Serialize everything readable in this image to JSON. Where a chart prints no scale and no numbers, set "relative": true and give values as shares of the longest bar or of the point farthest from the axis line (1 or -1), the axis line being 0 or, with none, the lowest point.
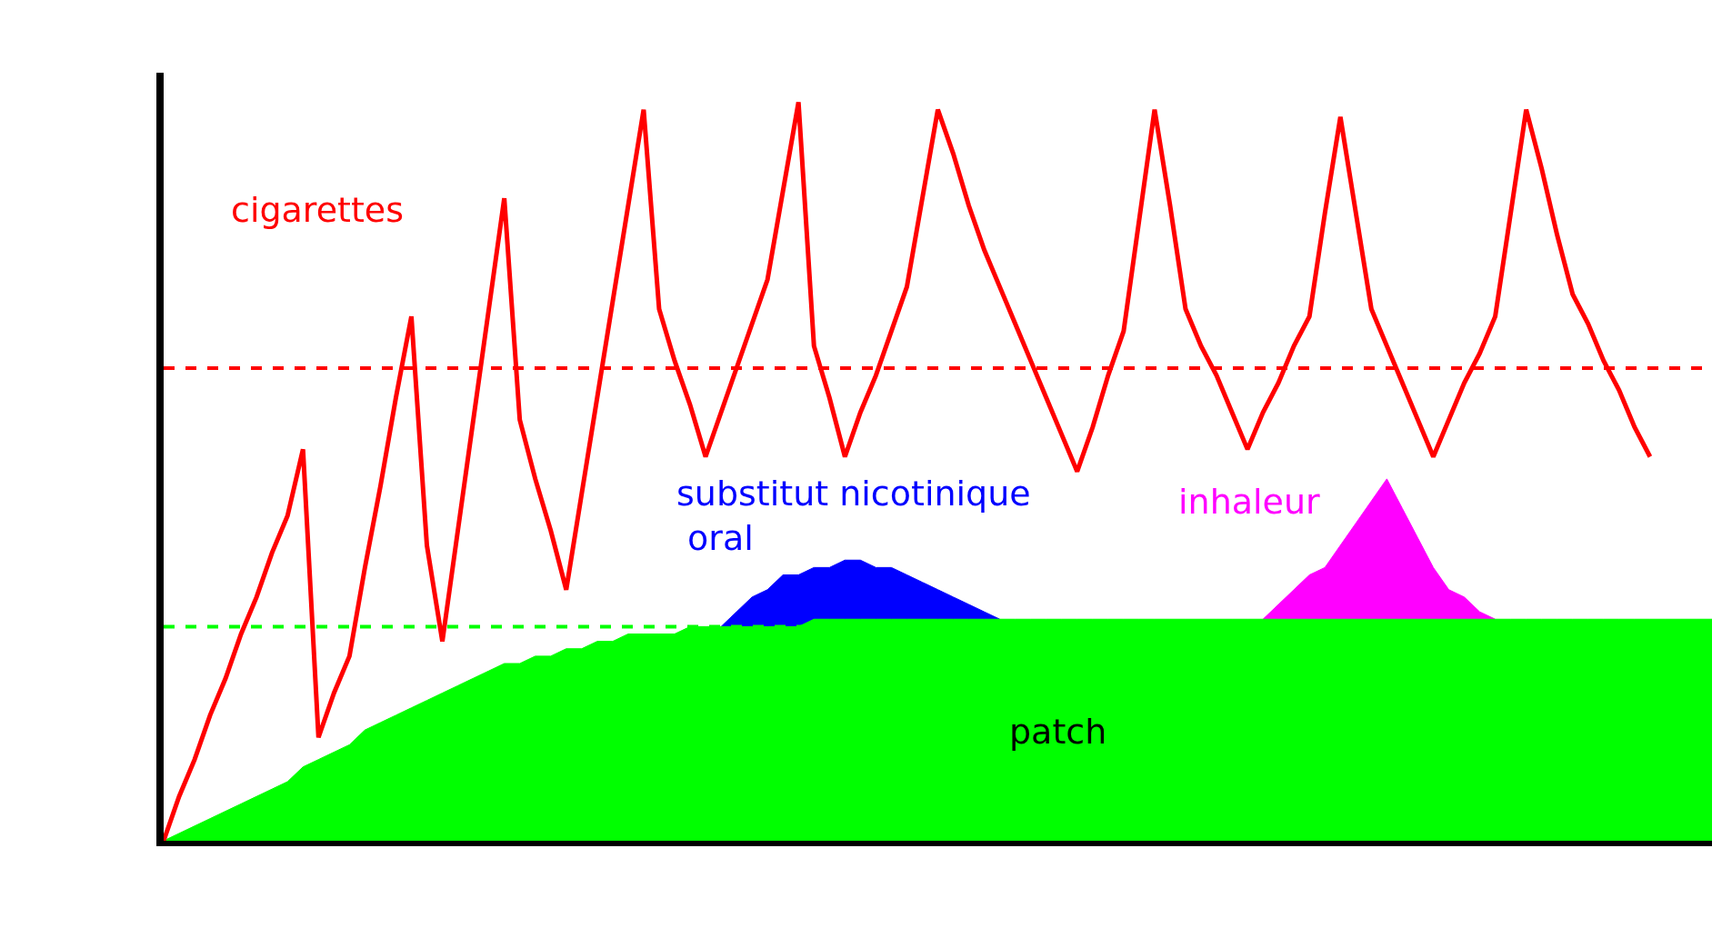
{
  "chart_data": {
    "type": "line",
    "relative": true,
    "tick_labels": false,
    "grid": false,
    "legend": false,
    "marker": "none",
    "categories": [
      null,
      null,
      null,
      null,
      null,
      null,
      null,
      null,
      null,
      null,
      null,
      null,
      null,
      null,
      null,
      null,
      null,
      null,
      null,
      null,
      null,
      null,
      null,
      null,
      null,
      null,
      null,
      null,
      null,
      null,
      null,
      null,
      null,
      null,
      null,
      null,
      null,
      null,
      null,
      null,
      null,
      null,
      null,
      null,
      null,
      null,
      null,
      null,
      null,
      null,
      null,
      null,
      null,
      null,
      null,
      null,
      null,
      null,
      null,
      null,
      null,
      null,
      null,
      null,
      null,
      null,
      null,
      null,
      null,
      null,
      null,
      null,
      null,
      null,
      null,
      null,
      null,
      null,
      null,
      null,
      null,
      null,
      null,
      null,
      null,
      null,
      null,
      null,
      null,
      null,
      null,
      null,
      null,
      null,
      null,
      null,
      null,
      null,
      null,
      null,
      null
    ],
    "series": [
      {
        "name": "cigarettes",
        "color": "#ff0000",
        "values": [
          0,
          0.06,
          0.11,
          0.17,
          0.22,
          0.28,
          0.33,
          0.39,
          0.44,
          0.53,
          0.14,
          0.2,
          0.25,
          0.37,
          0.48,
          0.6,
          0.71,
          0.4,
          0.27,
          0.42,
          0.57,
          0.72,
          0.87,
          0.57,
          0.49,
          0.42,
          0.34,
          0.47,
          0.6,
          0.73,
          0.86,
          0.99,
          0.72,
          0.65,
          0.59,
          0.52,
          0.58,
          0.64,
          0.7,
          0.76,
          0.88,
          1.0,
          0.67,
          0.6,
          0.52,
          0.58,
          0.63,
          0.69,
          0.75,
          0.87,
          0.99,
          0.93,
          0.86,
          0.8,
          0.75,
          0.7,
          0.65,
          0.6,
          0.55,
          0.5,
          0.56,
          0.63,
          0.69,
          0.84,
          0.99,
          0.86,
          0.72,
          0.67,
          0.63,
          0.58,
          0.53,
          0.58,
          0.62,
          0.67,
          0.71,
          0.85,
          0.98,
          0.85,
          0.72,
          0.67,
          0.62,
          0.57,
          0.52,
          0.57,
          0.62,
          0.66,
          0.71,
          0.85,
          0.99,
          0.91,
          0.82,
          0.74,
          0.7,
          0.65,
          0.61,
          0.56,
          0.52,
          null,
          null,
          null,
          null
        ]
      },
      {
        "name": "patch",
        "color": "#00ff00",
        "type": "area",
        "values": [
          0,
          0.01,
          0.02,
          0.03,
          0.04,
          0.05,
          0.06,
          0.07,
          0.08,
          0.1,
          0.11,
          0.12,
          0.13,
          0.15,
          0.16,
          0.17,
          0.18,
          0.19,
          0.2,
          0.21,
          0.22,
          0.23,
          0.24,
          0.24,
          0.25,
          0.25,
          0.26,
          0.26,
          0.27,
          0.27,
          0.28,
          0.28,
          0.28,
          0.28,
          0.29,
          0.29,
          0.29,
          0.29,
          0.29,
          0.29,
          0.29,
          0.29,
          0.3,
          0.3,
          0.3,
          0.3,
          0.3,
          0.3,
          0.3,
          0.3,
          0.3,
          0.3,
          0.3,
          0.3,
          0.3,
          0.3,
          0.3,
          0.3,
          0.3,
          0.3,
          0.3,
          0.3,
          0.3,
          0.3,
          0.3,
          0.3,
          0.3,
          0.3,
          0.3,
          0.3,
          0.3,
          0.3,
          0.3,
          0.3,
          0.3,
          0.3,
          0.3,
          0.3,
          0.3,
          0.3,
          0.3,
          0.3,
          0.3,
          0.3,
          0.3,
          0.3,
          0.3,
          0.3,
          0.3,
          0.3,
          0.3,
          0.3,
          0.3,
          0.3,
          0.3,
          0.3,
          0.3,
          0.3,
          0.3,
          0.3,
          0.3
        ]
      },
      {
        "name": "substitut nicotinique\noral",
        "color": "#0000ff",
        "type": "area",
        "values": [
          null,
          null,
          null,
          null,
          null,
          null,
          null,
          null,
          null,
          null,
          null,
          null,
          null,
          null,
          null,
          null,
          null,
          null,
          null,
          null,
          null,
          null,
          null,
          null,
          null,
          null,
          null,
          null,
          null,
          null,
          null,
          null,
          null,
          null,
          null,
          null,
          0.29,
          0.31,
          0.33,
          0.34,
          0.36,
          0.36,
          0.37,
          0.37,
          0.38,
          0.38,
          0.37,
          0.37,
          0.36,
          0.35,
          0.34,
          0.33,
          0.32,
          0.31,
          0.3,
          null,
          null,
          null,
          null,
          null,
          null,
          null,
          null,
          null,
          null,
          null,
          null,
          null,
          null,
          null,
          null,
          null,
          null,
          null,
          null,
          null,
          null,
          null,
          null,
          null,
          null,
          null,
          null,
          null,
          null,
          null,
          null,
          null,
          null,
          null,
          null,
          null,
          null,
          null,
          null,
          null,
          null,
          null,
          null,
          null,
          null
        ]
      },
      {
        "name": "inhaleur",
        "color": "#ff00ff",
        "type": "area",
        "values": [
          null,
          null,
          null,
          null,
          null,
          null,
          null,
          null,
          null,
          null,
          null,
          null,
          null,
          null,
          null,
          null,
          null,
          null,
          null,
          null,
          null,
          null,
          null,
          null,
          null,
          null,
          null,
          null,
          null,
          null,
          null,
          null,
          null,
          null,
          null,
          null,
          null,
          null,
          null,
          null,
          null,
          null,
          null,
          null,
          null,
          null,
          null,
          null,
          null,
          null,
          null,
          null,
          null,
          null,
          null,
          null,
          null,
          null,
          null,
          null,
          null,
          null,
          null,
          null,
          null,
          null,
          null,
          null,
          null,
          null,
          null,
          0.3,
          0.32,
          0.34,
          0.36,
          0.37,
          0.4,
          0.43,
          0.46,
          0.49,
          0.45,
          0.41,
          0.37,
          0.34,
          0.33,
          0.31,
          0.3,
          null,
          null,
          null,
          null,
          null,
          null,
          null,
          null,
          null,
          null,
          null,
          null,
          null,
          null
        ]
      }
    ],
    "ref_lines": [
      {
        "axis": "y",
        "value": 0.64,
        "color": "#ff0000",
        "line_style": "dashed"
      },
      {
        "axis": "y",
        "value": 0.29,
        "color": "#00ff00",
        "line_style": "dashed"
      }
    ]
  }
}
